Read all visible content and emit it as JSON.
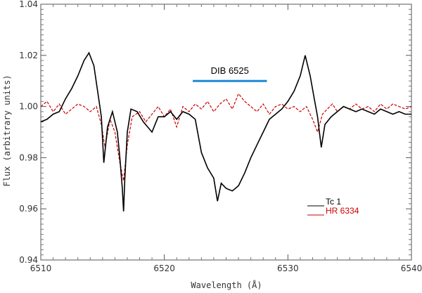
{
  "chart_data": {
    "type": "line",
    "title": "",
    "xlabel": "Wavelength (Å)",
    "ylabel": "Flux (arbitrary units)",
    "xlim": [
      6510,
      6540
    ],
    "ylim": [
      0.94,
      1.04
    ],
    "x_ticks": [
      6510,
      6520,
      6530,
      6540
    ],
    "x_tick_labels": [
      "6510",
      "6520",
      "6530",
      "6540"
    ],
    "y_ticks": [
      0.94,
      0.96,
      0.98,
      1.0,
      1.02,
      1.04
    ],
    "y_tick_labels": [
      "0.94",
      "0.96",
      "0.98",
      "1.00",
      "1.02",
      "1.04"
    ],
    "grid": false,
    "legend_position": "bottom-right",
    "series": [
      {
        "name": "Tc 1",
        "color": "#000000",
        "style": "solid",
        "x": [
          6510.0,
          6510.5,
          6511.0,
          6511.5,
          6512.0,
          6512.5,
          6513.0,
          6513.5,
          6513.9,
          6514.3,
          6514.6,
          6514.9,
          6515.1,
          6515.4,
          6515.8,
          6516.2,
          6516.4,
          6516.6,
          6516.7,
          6516.8,
          6517.0,
          6517.3,
          6517.8,
          6518.3,
          6519.0,
          6519.5,
          6520.0,
          6520.5,
          6521.0,
          6521.5,
          6522.0,
          6522.5,
          6523.0,
          6523.5,
          6524.0,
          6524.3,
          6524.6,
          6525.0,
          6525.5,
          6526.0,
          6526.5,
          6527.0,
          6527.5,
          6528.0,
          6528.5,
          6529.0,
          6529.5,
          6530.0,
          6530.5,
          6531.0,
          6531.4,
          6531.8,
          6532.1,
          6532.4,
          6532.7,
          6533.0,
          6533.5,
          6534.0,
          6534.5,
          6535.0,
          6535.5,
          6536.0,
          6536.5,
          6537.0,
          6537.5,
          6538.0,
          6538.5,
          6539.0,
          6539.5,
          6540.0
        ],
        "y": [
          0.994,
          0.995,
          0.997,
          0.998,
          1.003,
          1.007,
          1.012,
          1.018,
          1.021,
          1.016,
          1.006,
          0.996,
          0.978,
          0.992,
          0.998,
          0.99,
          0.98,
          0.968,
          0.959,
          0.972,
          0.99,
          0.999,
          0.998,
          0.994,
          0.99,
          0.996,
          0.996,
          0.998,
          0.995,
          0.998,
          0.997,
          0.995,
          0.982,
          0.976,
          0.972,
          0.963,
          0.97,
          0.968,
          0.967,
          0.969,
          0.974,
          0.98,
          0.985,
          0.99,
          0.995,
          0.997,
          0.999,
          1.002,
          1.006,
          1.012,
          1.02,
          1.012,
          1.004,
          0.996,
          0.984,
          0.993,
          0.996,
          0.998,
          1.0,
          0.999,
          0.998,
          0.999,
          0.998,
          0.997,
          0.999,
          0.998,
          0.997,
          0.998,
          0.997,
          0.997
        ]
      },
      {
        "name": "HR 6334",
        "color": "#cc0000",
        "style": "dashed",
        "x": [
          6510.0,
          6510.5,
          6511.0,
          6511.5,
          6512.0,
          6512.5,
          6513.0,
          6513.5,
          6514.0,
          6514.5,
          6514.9,
          6515.2,
          6515.6,
          6516.0,
          6516.4,
          6516.7,
          6517.0,
          6517.4,
          6518.0,
          6518.5,
          6519.0,
          6519.5,
          6520.0,
          6520.5,
          6521.0,
          6521.5,
          6522.0,
          6522.5,
          6523.0,
          6523.5,
          6524.0,
          6524.5,
          6525.0,
          6525.5,
          6526.0,
          6526.5,
          6527.0,
          6527.5,
          6528.0,
          6528.5,
          6529.0,
          6529.5,
          6530.0,
          6530.5,
          6531.0,
          6531.5,
          6532.0,
          6532.4,
          6532.8,
          6533.2,
          6533.6,
          6534.0,
          6534.5,
          6535.0,
          6535.5,
          6536.0,
          6536.5,
          6537.0,
          6537.5,
          6538.0,
          6538.5,
          6539.0,
          6539.5,
          6540.0
        ],
        "y": [
          1.0,
          1.002,
          0.998,
          1.001,
          0.997,
          0.999,
          1.001,
          1.0,
          0.998,
          1.0,
          0.993,
          0.984,
          0.995,
          0.99,
          0.978,
          0.971,
          0.985,
          0.996,
          0.998,
          0.994,
          0.997,
          1.0,
          0.996,
          0.999,
          0.992,
          1.0,
          0.998,
          1.001,
          0.999,
          1.002,
          0.998,
          1.001,
          1.003,
          0.999,
          1.005,
          1.002,
          1.0,
          0.998,
          1.001,
          0.997,
          1.0,
          1.001,
          0.999,
          1.0,
          0.998,
          1.0,
          0.995,
          0.99,
          0.997,
          0.999,
          1.001,
          0.998,
          1.0,
          0.999,
          1.001,
          0.999,
          1.0,
          0.998,
          1.001,
          0.999,
          1.001,
          1.0,
          0.999,
          1.0
        ]
      }
    ],
    "annotations": [
      {
        "label": "DIB 6525",
        "x_start": 6522.3,
        "x_end": 6528.3,
        "y": 1.01,
        "color": "#1e8ad6"
      }
    ]
  }
}
